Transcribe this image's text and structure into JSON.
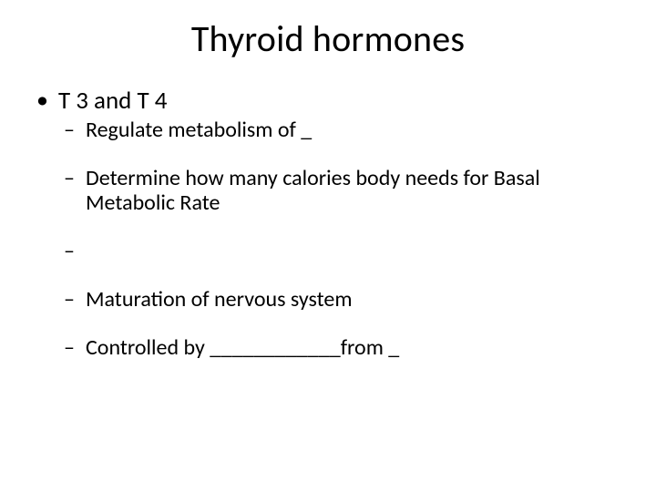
{
  "title": "Thyroid hormones",
  "bullets": {
    "l1_0": "T 3 and T 4",
    "l2_0": "Regulate metabolism of _",
    "l2_1": "Determine how many calories body needs for Basal Metabolic Rate",
    "l2_2": "",
    "l2_3": "Maturation of nervous system",
    "l2_4": "Controlled by ____________from _"
  },
  "style": {
    "background_color": "#ffffff",
    "text_color": "#000000",
    "title_fontsize": 40,
    "l1_fontsize": 27,
    "l2_fontsize": 24,
    "font_family": "Calibri"
  }
}
